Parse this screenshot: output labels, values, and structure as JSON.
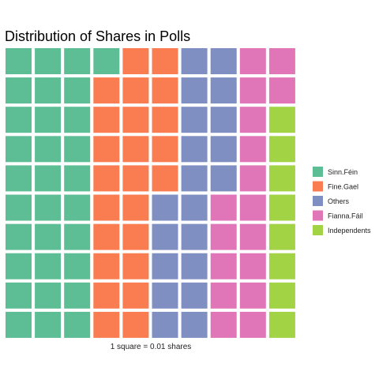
{
  "chart_data": {
    "type": "waffle",
    "title": "Distribution of Shares in Polls",
    "caption": "1 square = 0.01 shares",
    "grid": {
      "rows": 10,
      "cols": 10,
      "fill_order": "column-major, top-to-bottom"
    },
    "series": [
      {
        "name": "Sinn.Féin",
        "squares": 31,
        "color": "#5DBD95"
      },
      {
        "name": "Fine.Gael",
        "squares": 24,
        "color": "#FA7D52"
      },
      {
        "name": "Others",
        "squares": 20,
        "color": "#808FC2"
      },
      {
        "name": "Fianna.Fáil",
        "squares": 17,
        "color": "#E076B8"
      },
      {
        "name": "Independents",
        "squares": 8,
        "color": "#A1D345"
      }
    ],
    "legend_position": "right",
    "grid_lines": false
  }
}
